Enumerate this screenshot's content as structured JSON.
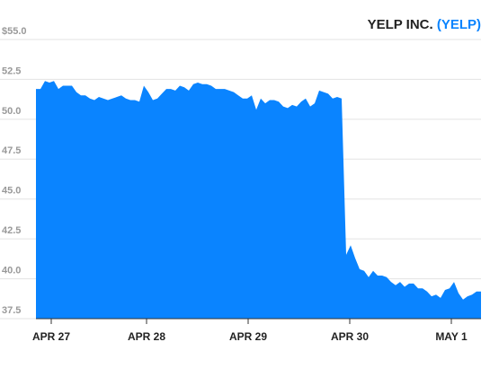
{
  "chart_data": {
    "type": "area",
    "title": "YELP INC.",
    "ticker": "(YELP)",
    "color": "#0a84ff",
    "title_color": "#222222",
    "ticker_color": "#0a84ff",
    "grid": true,
    "values": [
      51.9,
      51.9,
      52.4,
      52.3,
      52.4,
      51.9,
      52.1,
      52.1,
      52.1,
      51.7,
      51.5,
      51.5,
      51.3,
      51.2,
      51.4,
      51.3,
      51.2,
      51.3,
      51.4,
      51.5,
      51.3,
      51.2,
      51.2,
      51.1,
      52.1,
      51.7,
      51.2,
      51.3,
      51.6,
      51.9,
      51.9,
      51.8,
      52.1,
      52.0,
      51.8,
      52.2,
      52.3,
      52.2,
      52.2,
      52.1,
      51.9,
      51.9,
      51.9,
      51.8,
      51.7,
      51.5,
      51.3,
      51.3,
      51.5,
      50.6,
      51.3,
      51.0,
      51.2,
      51.2,
      51.1,
      50.8,
      50.7,
      50.9,
      50.8,
      51.1,
      51.3,
      50.8,
      51.0,
      51.8,
      51.7,
      51.6,
      51.3,
      51.4,
      51.3,
      41.5,
      42.1,
      41.3,
      40.6,
      40.5,
      40.1,
      40.5,
      40.2,
      40.2,
      40.1,
      39.8,
      39.6,
      39.8,
      39.5,
      39.7,
      39.7,
      39.4,
      39.4,
      39.2,
      38.9,
      39.0,
      38.8,
      39.3,
      39.4,
      39.8,
      39.1,
      38.7,
      38.9,
      39.0,
      39.2,
      39.2
    ],
    "xlim": [
      0,
      99
    ],
    "xticks": [
      {
        "value": 3.4,
        "label": "APR 27"
      },
      {
        "value": 24.6,
        "label": "APR 28"
      },
      {
        "value": 47.2,
        "label": "APR 29"
      },
      {
        "value": 69.8,
        "label": "APR 30"
      },
      {
        "value": 92.4,
        "label": "MAY 1"
      }
    ],
    "ylim": [
      37.5,
      55
    ],
    "yticks": [
      {
        "value": 55,
        "label": "$55.0"
      },
      {
        "value": 52.5,
        "label": "52.5"
      },
      {
        "value": 50,
        "label": "50.0"
      },
      {
        "value": 47.5,
        "label": "47.5"
      },
      {
        "value": 45,
        "label": "45.0"
      },
      {
        "value": 42.5,
        "label": "42.5"
      },
      {
        "value": 40,
        "label": "40.0"
      },
      {
        "value": 37.5,
        "label": "37.5"
      }
    ]
  }
}
